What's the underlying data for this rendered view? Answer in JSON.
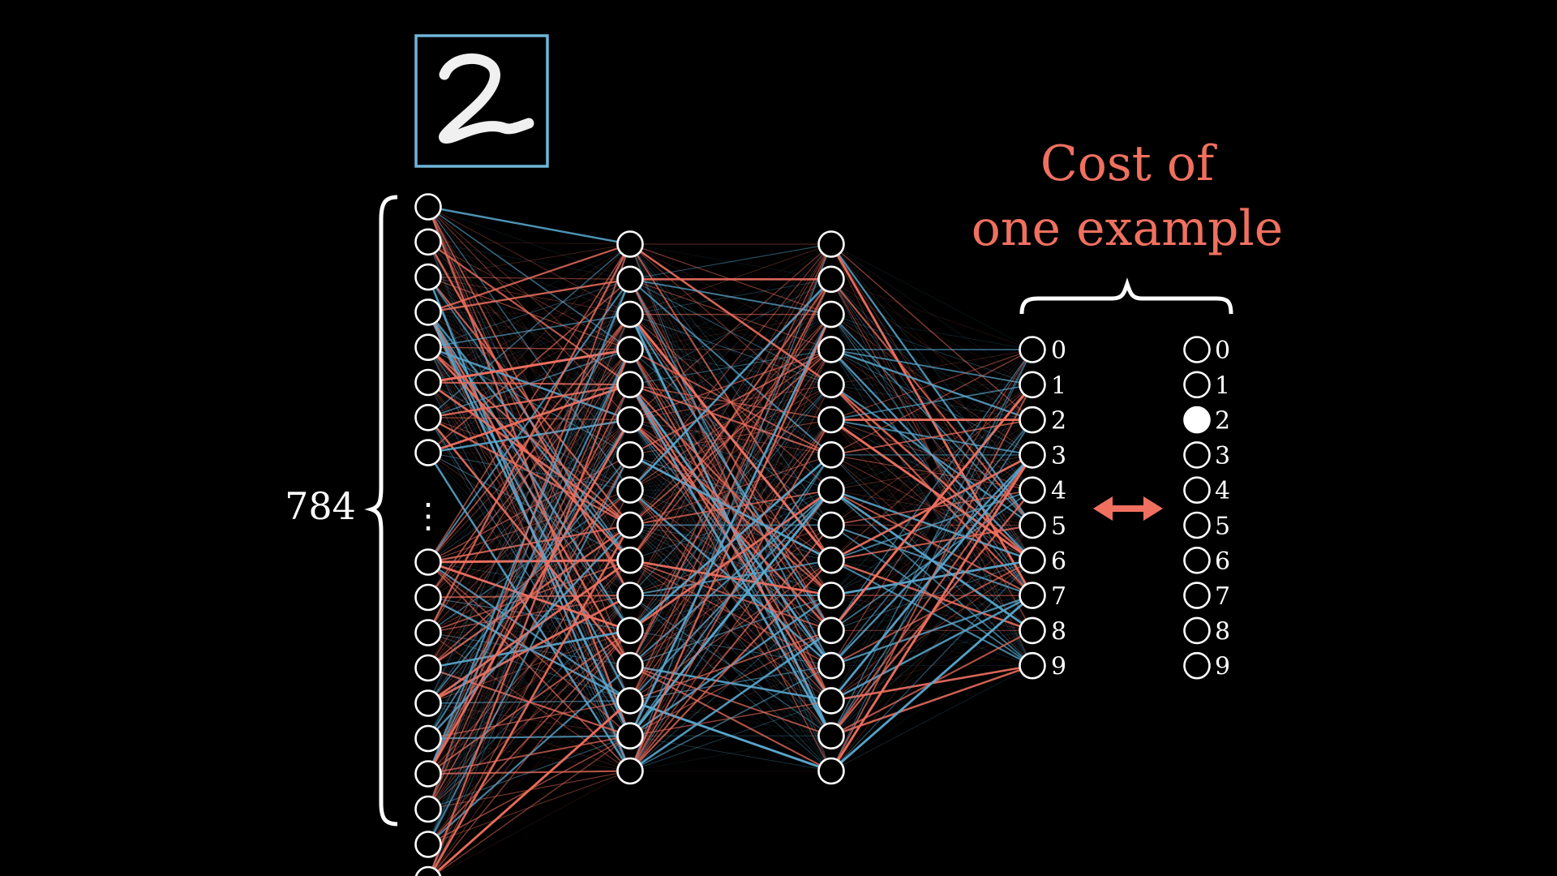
{
  "input_image": {
    "digit": "2",
    "frame_color": "#6fb6d8"
  },
  "network": {
    "input_count_label": "784",
    "input_ellipsis": "⋮",
    "layers": [
      {
        "name": "input",
        "visible_neurons": 18
      },
      {
        "name": "hidden-1",
        "visible_neurons": 16
      },
      {
        "name": "hidden-2",
        "visible_neurons": 16
      },
      {
        "name": "output",
        "visible_neurons": 10
      }
    ],
    "output_labels": [
      "0",
      "1",
      "2",
      "3",
      "4",
      "5",
      "6",
      "7",
      "8",
      "9"
    ],
    "positive_weight_color": "#5aa9d0",
    "negative_weight_color": "#f0705f"
  },
  "target": {
    "labels": [
      "0",
      "1",
      "2",
      "3",
      "4",
      "5",
      "6",
      "7",
      "8",
      "9"
    ],
    "active_index": 2
  },
  "cost": {
    "title_line1": "Cost of",
    "title_line2": "one example",
    "color": "#f0705f",
    "arrow_symbol": "↔"
  }
}
